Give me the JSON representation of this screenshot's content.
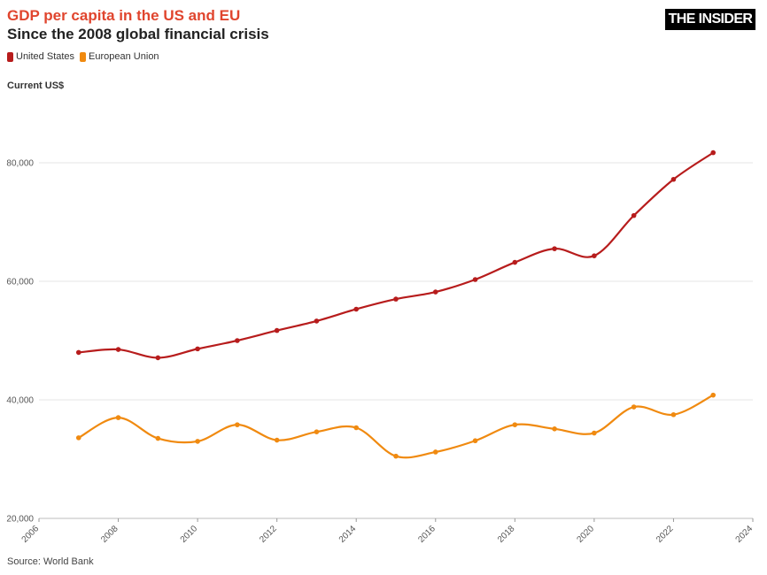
{
  "header": {
    "title": "GDP per capita in the US and EU",
    "subtitle": "Since the 2008 global financial crisis",
    "logo_text": "THE INSIDER"
  },
  "footer": {
    "source": "Source: World Bank"
  },
  "chart_data": {
    "type": "line",
    "title": "GDP per capita in the US and EU",
    "subtitle": "Since the 2008 global financial crisis",
    "ylabel": "Current US$",
    "xlabel": "",
    "xlim": [
      2006,
      2024
    ],
    "ylim": [
      20000,
      90000
    ],
    "x_ticks": [
      2006,
      2008,
      2010,
      2012,
      2014,
      2016,
      2018,
      2020,
      2022,
      2024
    ],
    "y_ticks": [
      20000,
      40000,
      60000,
      80000
    ],
    "y_tick_labels": [
      "20,000",
      "40,000",
      "60,000",
      "80,000"
    ],
    "grid": "horizontal",
    "legend_position": "top-left",
    "x": [
      2007,
      2008,
      2009,
      2010,
      2011,
      2012,
      2013,
      2014,
      2015,
      2016,
      2017,
      2018,
      2019,
      2020,
      2021,
      2022,
      2023
    ],
    "series": [
      {
        "name": "United States",
        "color": "#b71c1c",
        "values": [
          48000,
          48500,
          47100,
          48600,
          50000,
          51700,
          53300,
          55300,
          57000,
          58200,
          60300,
          63200,
          65500,
          64300,
          71100,
          77200,
          81700
        ]
      },
      {
        "name": "European Union",
        "color": "#f08a10",
        "values": [
          33600,
          37000,
          33500,
          33000,
          35800,
          33200,
          34600,
          35300,
          30500,
          31200,
          33100,
          35800,
          35100,
          34400,
          38800,
          37500,
          40800
        ]
      }
    ]
  }
}
